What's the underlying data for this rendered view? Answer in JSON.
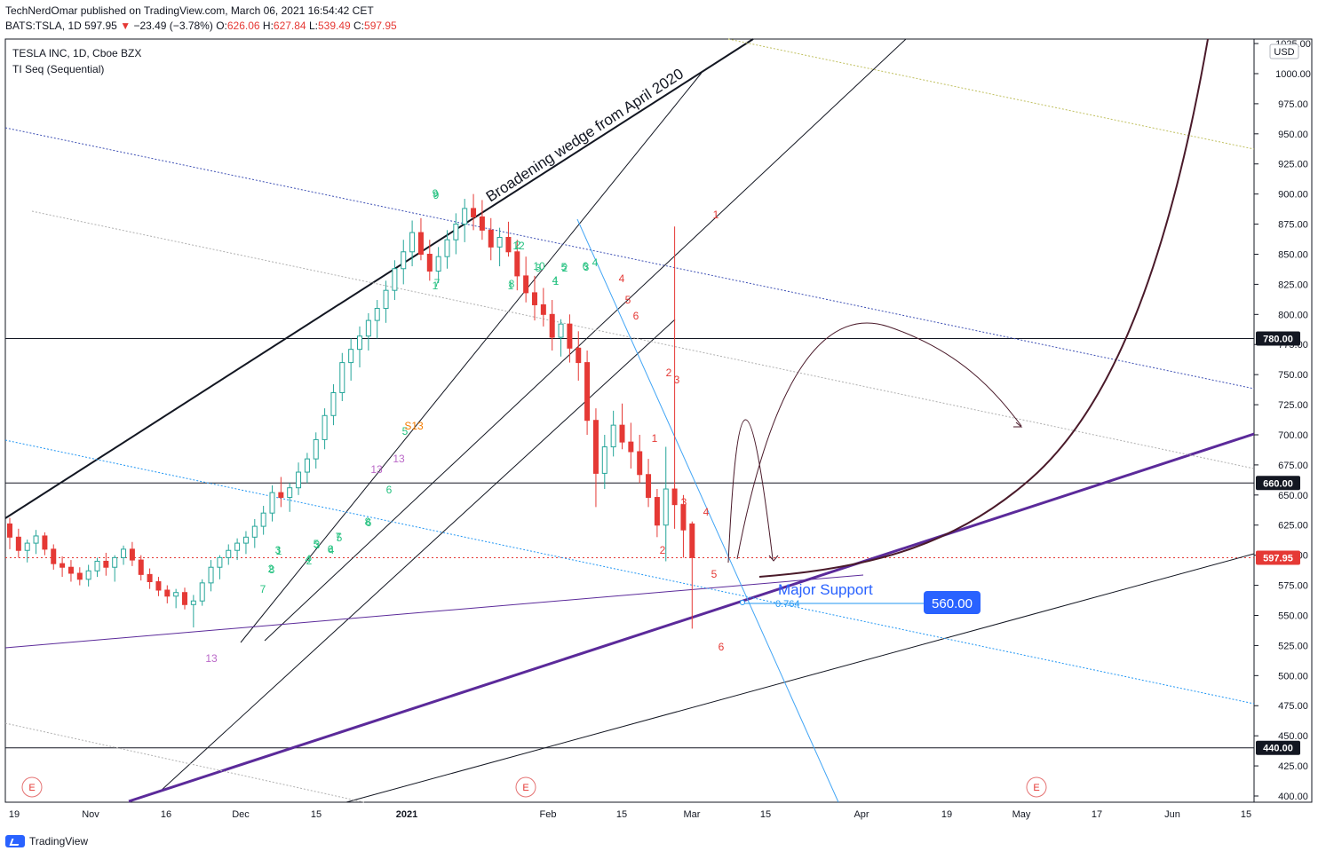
{
  "header": {
    "publisher": "TechNerdOmar published on TradingView.com, March 06, 2021 16:54:42 CET",
    "symbol": "BATS:TSLA, 1D",
    "last": "597.95",
    "change": "−23.49 (−3.78%)",
    "o_label": "O:",
    "o_val": "626.06",
    "h_label": "H:",
    "h_val": "627.84",
    "l_label": "L:",
    "l_val": "539.49",
    "c_label": "C:",
    "c_val": "597.95"
  },
  "footer": {
    "brand": "TradingView"
  },
  "colors": {
    "up": "#26a69a",
    "down": "#e53935",
    "wedge": "#5b2a9a",
    "projection": "#4a1a2a",
    "support": "#2196f3"
  },
  "chart_data": {
    "type": "candlestick",
    "title": "TESLA INC, 1D, Cboe BZX",
    "indicator": "TI Seq (Sequential)",
    "currency": "USD",
    "ylim": [
      392,
      1030
    ],
    "y_ticks": [
      400,
      425,
      450,
      475,
      500,
      525,
      550,
      575,
      600,
      625,
      650,
      675,
      700,
      725,
      750,
      775,
      800,
      825,
      850,
      875,
      900,
      925,
      950,
      975,
      1000,
      1025
    ],
    "x_ticks": [
      "19",
      "Nov",
      "16",
      "Dec",
      "15",
      "2021",
      "Feb",
      "15",
      "Mar",
      "15",
      "Apr",
      "19",
      "May",
      "17",
      "Jun",
      "15"
    ],
    "price_tags": [
      {
        "label": "780.00",
        "value": 780,
        "style": "dark"
      },
      {
        "label": "660.00",
        "value": 660,
        "style": "dark"
      },
      {
        "label": "597.95",
        "value": 597.95,
        "style": "red"
      },
      {
        "label": "440.00",
        "value": 440,
        "style": "dark"
      }
    ],
    "annotations": {
      "wedge_text": "Broadening wedge from April 2020",
      "support_text": "Major Support",
      "support_price": "560.00",
      "fib_text": "0.764",
      "earnings": "E"
    },
    "seq_counts": {
      "green": [
        "9",
        "1",
        "2",
        "3",
        "4",
        "5",
        "6",
        "7",
        "8",
        "9",
        "1",
        "2",
        "3",
        "4",
        "5",
        "6",
        "7",
        "8",
        "1",
        "2",
        "3",
        "4",
        "5",
        "6",
        "7",
        "8",
        "12",
        "10",
        "1",
        "2",
        "3",
        "4",
        "5",
        "6"
      ],
      "red": [
        "1",
        "2",
        "3",
        "4",
        "5",
        "6",
        "1",
        "2",
        "3",
        "4",
        "5",
        "6"
      ],
      "countdown": [
        "13",
        "13",
        "13",
        "S13"
      ]
    },
    "candles": [
      [
        626,
        631,
        605,
        615
      ],
      [
        615,
        622,
        598,
        604
      ],
      [
        604,
        613,
        594,
        610
      ],
      [
        610,
        621,
        601,
        616
      ],
      [
        616,
        619,
        600,
        605
      ],
      [
        605,
        609,
        588,
        593
      ],
      [
        593,
        599,
        582,
        590
      ],
      [
        590,
        596,
        578,
        585
      ],
      [
        585,
        590,
        575,
        580
      ],
      [
        580,
        592,
        574,
        587
      ],
      [
        587,
        598,
        582,
        595
      ],
      [
        595,
        602,
        583,
        590
      ],
      [
        590,
        600,
        578,
        598
      ],
      [
        598,
        608,
        592,
        605
      ],
      [
        605,
        611,
        591,
        596
      ],
      [
        596,
        600,
        579,
        584
      ],
      [
        584,
        589,
        572,
        578
      ],
      [
        578,
        582,
        566,
        571
      ],
      [
        571,
        575,
        560,
        566
      ],
      [
        566,
        572,
        556,
        569
      ],
      [
        569,
        573,
        555,
        559
      ],
      [
        559,
        567,
        540,
        562
      ],
      [
        562,
        580,
        558,
        577
      ],
      [
        577,
        596,
        570,
        590
      ],
      [
        590,
        600,
        580,
        598
      ],
      [
        598,
        609,
        592,
        604
      ],
      [
        604,
        614,
        596,
        610
      ],
      [
        610,
        620,
        601,
        615
      ],
      [
        615,
        630,
        606,
        624
      ],
      [
        624,
        641,
        617,
        635
      ],
      [
        635,
        658,
        628,
        652
      ],
      [
        652,
        665,
        640,
        648
      ],
      [
        648,
        660,
        636,
        656
      ],
      [
        656,
        677,
        650,
        669
      ],
      [
        669,
        685,
        660,
        680
      ],
      [
        680,
        702,
        672,
        696
      ],
      [
        696,
        722,
        688,
        716
      ],
      [
        716,
        742,
        708,
        735
      ],
      [
        735,
        768,
        728,
        760
      ],
      [
        760,
        780,
        745,
        771
      ],
      [
        771,
        790,
        756,
        782
      ],
      [
        782,
        801,
        770,
        795
      ],
      [
        795,
        812,
        780,
        805
      ],
      [
        805,
        828,
        793,
        820
      ],
      [
        820,
        845,
        812,
        838
      ],
      [
        838,
        862,
        825,
        852
      ],
      [
        852,
        878,
        840,
        868
      ],
      [
        868,
        880,
        845,
        850
      ],
      [
        850,
        862,
        828,
        836
      ],
      [
        836,
        856,
        826,
        848
      ],
      [
        848,
        870,
        838,
        862
      ],
      [
        862,
        884,
        850,
        875
      ],
      [
        875,
        896,
        860,
        888
      ],
      [
        888,
        900,
        870,
        881
      ],
      [
        881,
        895,
        862,
        870
      ],
      [
        870,
        880,
        845,
        856
      ],
      [
        856,
        872,
        840,
        864
      ],
      [
        864,
        877,
        848,
        852
      ],
      [
        852,
        862,
        820,
        832
      ],
      [
        832,
        848,
        810,
        818
      ],
      [
        818,
        832,
        795,
        808
      ],
      [
        808,
        822,
        790,
        800
      ],
      [
        800,
        812,
        770,
        781
      ],
      [
        781,
        796,
        765,
        792
      ],
      [
        792,
        800,
        760,
        772
      ],
      [
        772,
        786,
        745,
        760
      ],
      [
        760,
        770,
        700,
        712
      ],
      [
        712,
        722,
        640,
        668
      ],
      [
        668,
        700,
        655,
        690
      ],
      [
        690,
        720,
        682,
        708
      ],
      [
        708,
        726,
        688,
        694
      ],
      [
        694,
        710,
        672,
        686
      ],
      [
        686,
        700,
        660,
        667
      ],
      [
        667,
        680,
        640,
        648
      ],
      [
        648,
        655,
        615,
        625
      ],
      [
        625,
        690,
        595,
        655
      ],
      [
        655,
        873,
        622,
        642
      ],
      [
        642,
        650,
        598,
        621
      ],
      [
        626,
        628,
        539,
        598
      ]
    ]
  }
}
